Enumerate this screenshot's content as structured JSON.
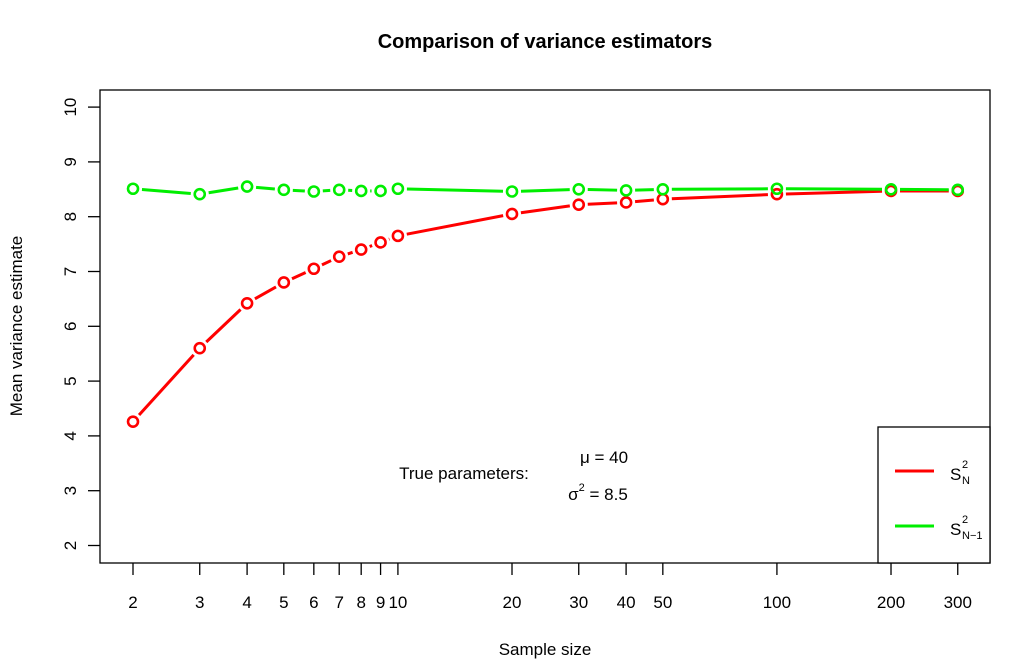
{
  "chart_data": {
    "type": "line",
    "title": "Comparison of variance estimators",
    "xlabel": "Sample size",
    "ylabel": "Mean variance estimate",
    "x_scale": "log",
    "x": [
      2,
      3,
      4,
      5,
      6,
      7,
      8,
      9,
      10,
      20,
      30,
      40,
      50,
      100,
      200,
      300
    ],
    "x_tick_labels": [
      "2",
      "3",
      "4",
      "5",
      "6",
      "7",
      "8",
      "9",
      "10",
      "20",
      "30",
      "40",
      "50",
      "100",
      "200",
      "300"
    ],
    "y_ticks": [
      2,
      3,
      4,
      5,
      6,
      7,
      8,
      9,
      10
    ],
    "y_tick_labels": [
      "2",
      "3",
      "4",
      "5",
      "6",
      "7",
      "8",
      "9",
      "10"
    ],
    "ylim": [
      1.7,
      10.3
    ],
    "xlim": [
      1.8,
      330
    ],
    "grid": false,
    "marker": "open-circle",
    "series": [
      {
        "name": "S_N^2",
        "label_base": "S",
        "label_sup": "2",
        "label_sub": "N",
        "color": "#ff0000",
        "values": [
          4.26,
          5.6,
          6.42,
          6.8,
          7.05,
          7.27,
          7.4,
          7.53,
          7.65,
          8.05,
          8.22,
          8.26,
          8.32,
          8.41,
          8.47,
          8.47
        ]
      },
      {
        "name": "S_N-1^2",
        "label_base": "S",
        "label_sup": "2",
        "label_sub": "N−1",
        "color": "#00ee00",
        "values": [
          8.51,
          8.41,
          8.55,
          8.49,
          8.46,
          8.49,
          8.47,
          8.47,
          8.51,
          8.46,
          8.5,
          8.48,
          8.5,
          8.51,
          8.5,
          8.49
        ]
      }
    ],
    "legend_position": "bottom-right",
    "annotations": {
      "label": "True parameters:",
      "mu_symbol": "μ",
      "mu_text": " = 40",
      "sigma_symbol": "σ",
      "sigma_sup": "2",
      "sigma_text": " = 8.5"
    }
  }
}
